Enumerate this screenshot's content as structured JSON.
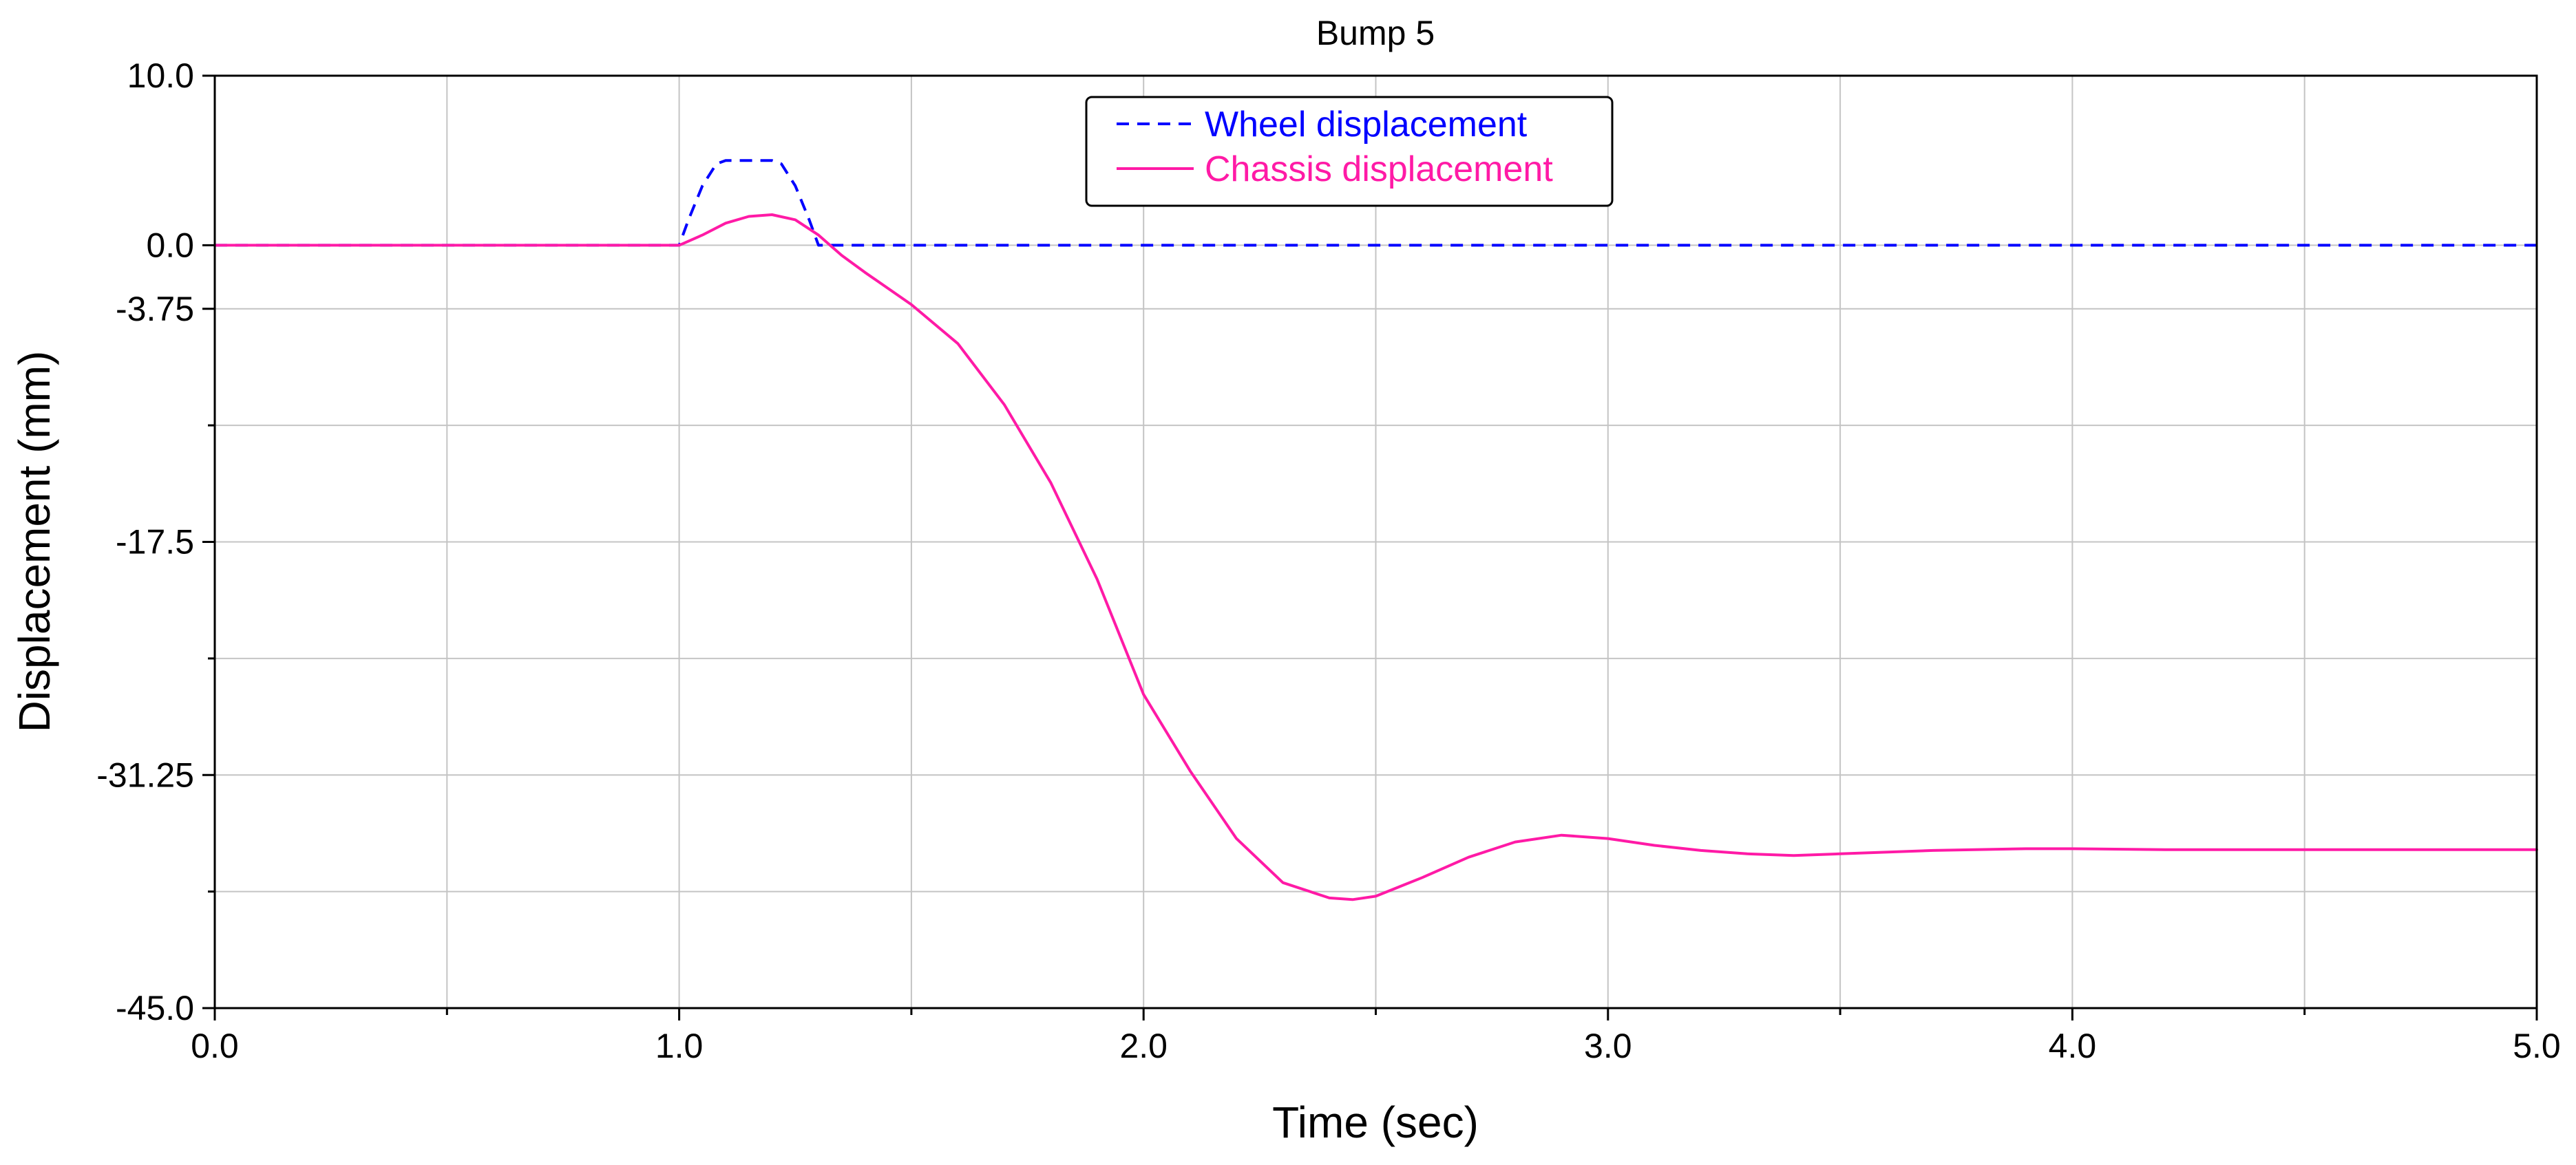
{
  "chart_data": {
    "type": "line",
    "title": "Bump 5",
    "xlabel": "Time (sec)",
    "ylabel": "Displacement (mm)",
    "xlim": [
      0,
      5
    ],
    "ylim": [
      -45,
      10
    ],
    "grid": true,
    "legend_position": "top-center",
    "x_ticks": [
      {
        "value": 0,
        "label": "0.0"
      },
      {
        "value": 1,
        "label": "1.0"
      },
      {
        "value": 2,
        "label": "2.0"
      },
      {
        "value": 3,
        "label": "3.0"
      },
      {
        "value": 4,
        "label": "4.0"
      },
      {
        "value": 5,
        "label": "5.0"
      }
    ],
    "x_minor_ticks": [
      0.5,
      1.5,
      2.5,
      3.5,
      4.5
    ],
    "y_ticks": [
      {
        "value": 10,
        "label": "10.0"
      },
      {
        "value": 0,
        "label": "0.0"
      },
      {
        "value": -3.75,
        "label": "-3.75"
      },
      {
        "value": -17.5,
        "label": "-17.5"
      },
      {
        "value": -31.25,
        "label": "-31.25"
      },
      {
        "value": -45,
        "label": "-45.0"
      }
    ],
    "y_minor_ticks": [
      -10.625,
      -24.375,
      -38.125
    ],
    "series": [
      {
        "name": "Wheel displacement",
        "color": "#0000ff",
        "dash": "dashed",
        "x": [
          0,
          1.0,
          1.02,
          1.05,
          1.08,
          1.1,
          1.15,
          1.2,
          1.22,
          1.25,
          1.28,
          1.3,
          2,
          3,
          4,
          5
        ],
        "y": [
          0,
          0,
          1.5,
          3.5,
          4.8,
          5,
          5,
          5,
          4.8,
          3.5,
          1.5,
          0,
          0,
          0,
          0,
          0
        ]
      },
      {
        "name": "Chassis displacement",
        "color": "#ff1aa6",
        "dash": "solid",
        "x": [
          0,
          1.0,
          1.05,
          1.1,
          1.15,
          1.2,
          1.25,
          1.3,
          1.35,
          1.4,
          1.5,
          1.6,
          1.7,
          1.8,
          1.9,
          2.0,
          2.1,
          2.2,
          2.3,
          2.4,
          2.45,
          2.5,
          2.6,
          2.7,
          2.8,
          2.9,
          3.0,
          3.1,
          3.2,
          3.3,
          3.4,
          3.5,
          3.7,
          3.9,
          4.0,
          4.2,
          4.5,
          5.0
        ],
        "y": [
          0,
          0,
          0.6,
          1.3,
          1.7,
          1.8,
          1.5,
          0.6,
          -0.6,
          -1.6,
          -3.5,
          -5.8,
          -9.4,
          -14.0,
          -19.7,
          -26.5,
          -31.0,
          -35.0,
          -37.6,
          -38.5,
          -38.6,
          -38.4,
          -37.3,
          -36.1,
          -35.2,
          -34.8,
          -35.0,
          -35.4,
          -35.7,
          -35.9,
          -36.0,
          -35.9,
          -35.7,
          -35.6,
          -35.6,
          -35.65,
          -35.65,
          -35.65
        ]
      }
    ]
  }
}
